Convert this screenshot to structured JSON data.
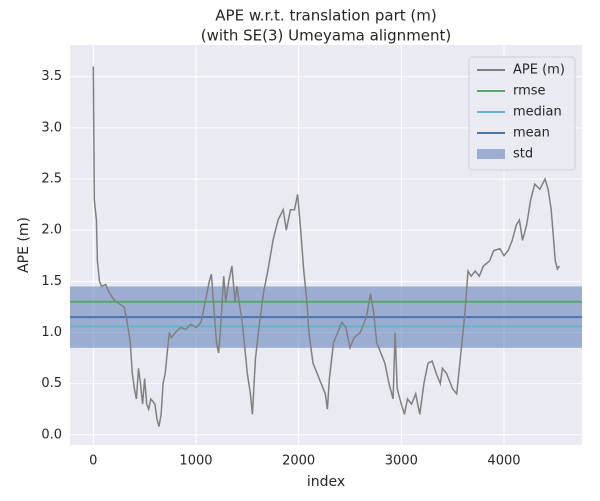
{
  "chart_data": {
    "type": "line",
    "title": [
      "APE w.r.t. translation part (m)",
      "(with SE(3) Umeyama alignment)"
    ],
    "xlabel": "index",
    "ylabel": "APE (m)",
    "xlim": [
      -227,
      4760
    ],
    "ylim": [
      -0.1,
      3.81
    ],
    "xticks": [
      0,
      1000,
      2000,
      3000,
      4000
    ],
    "yticks": [
      {
        "value": 0,
        "label": "0.0"
      },
      0.5,
      {
        "value": 1,
        "label": "1.0"
      },
      1.5,
      {
        "value": 2,
        "label": "2.0"
      },
      2.5,
      {
        "value": 3,
        "label": "3.0"
      },
      3.5
    ],
    "grid": true,
    "legend": "upper right",
    "series": [
      {
        "name": "APE (m)",
        "color": "#808080",
        "x": [
          0,
          10,
          30,
          40,
          60,
          80,
          120,
          150,
          200,
          250,
          300,
          330,
          360,
          380,
          400,
          420,
          440,
          460,
          480,
          500,
          520,
          540,
          560,
          600,
          620,
          640,
          660,
          680,
          700,
          720,
          740,
          760,
          800,
          850,
          900,
          950,
          1000,
          1050,
          1100,
          1130,
          1150,
          1170,
          1200,
          1220,
          1240,
          1270,
          1290,
          1320,
          1350,
          1380,
          1400,
          1420,
          1450,
          1480,
          1500,
          1530,
          1550,
          1580,
          1620,
          1660,
          1700,
          1750,
          1800,
          1850,
          1880,
          1920,
          1960,
          1990,
          2020,
          2050,
          2080,
          2100,
          2140,
          2180,
          2220,
          2260,
          2280,
          2300,
          2340,
          2380,
          2420,
          2460,
          2500,
          2540,
          2600,
          2660,
          2700,
          2730,
          2760,
          2800,
          2840,
          2880,
          2920,
          2940,
          2960,
          3000,
          3030,
          3060,
          3100,
          3140,
          3180,
          3220,
          3260,
          3300,
          3340,
          3380,
          3400,
          3440,
          3500,
          3540,
          3580,
          3620,
          3650,
          3680,
          3720,
          3760,
          3800,
          3860,
          3900,
          3960,
          4000,
          4040,
          4080,
          4120,
          4150,
          4180,
          4220,
          4260,
          4300,
          4350,
          4400,
          4430,
          4460,
          4500,
          4520,
          4540
        ],
        "values": [
          3.6,
          2.3,
          2.1,
          1.7,
          1.5,
          1.45,
          1.47,
          1.4,
          1.32,
          1.28,
          1.25,
          1.1,
          0.9,
          0.6,
          0.45,
          0.35,
          0.65,
          0.5,
          0.3,
          0.55,
          0.3,
          0.25,
          0.35,
          0.3,
          0.15,
          0.08,
          0.2,
          0.5,
          0.6,
          0.8,
          1.0,
          0.95,
          1.0,
          1.05,
          1.03,
          1.08,
          1.05,
          1.1,
          1.35,
          1.5,
          1.57,
          1.3,
          0.9,
          0.8,
          1.05,
          1.55,
          1.3,
          1.5,
          1.65,
          1.3,
          1.45,
          1.3,
          1.1,
          0.8,
          0.6,
          0.4,
          0.2,
          0.75,
          1.1,
          1.4,
          1.6,
          1.9,
          2.1,
          2.2,
          2.0,
          2.2,
          2.2,
          2.35,
          2.0,
          1.6,
          1.3,
          1.0,
          0.7,
          0.6,
          0.5,
          0.4,
          0.25,
          0.55,
          0.9,
          1.0,
          1.1,
          1.05,
          0.85,
          0.95,
          1.0,
          1.15,
          1.38,
          1.2,
          0.9,
          0.8,
          0.7,
          0.5,
          0.35,
          1.0,
          0.45,
          0.3,
          0.2,
          0.35,
          0.3,
          0.4,
          0.2,
          0.5,
          0.7,
          0.72,
          0.6,
          0.5,
          0.65,
          0.6,
          0.45,
          0.4,
          0.8,
          1.2,
          1.6,
          1.55,
          1.6,
          1.55,
          1.65,
          1.7,
          1.8,
          1.82,
          1.75,
          1.8,
          1.9,
          2.05,
          2.1,
          1.9,
          2.05,
          2.3,
          2.45,
          2.4,
          2.5,
          2.4,
          2.2,
          1.7,
          1.62,
          1.65
        ]
      }
    ],
    "hlines": [
      {
        "name": "rmse",
        "color": "#55a868",
        "value": 1.3
      },
      {
        "name": "median",
        "color": "#64b5cd",
        "value": 1.06
      },
      {
        "name": "mean",
        "color": "#4c72b0",
        "value": 1.15
      }
    ],
    "band": {
      "name": "std",
      "color": "#4c72b0",
      "value": 0.3
    }
  }
}
